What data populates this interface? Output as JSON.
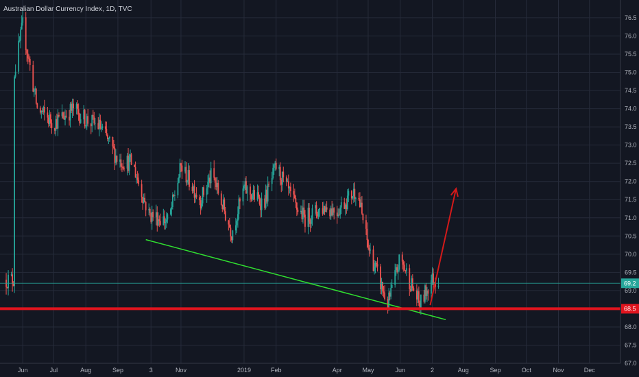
{
  "header": {
    "title": "Australian Dollar Currency Index, 1D, TVC"
  },
  "colors": {
    "background": "#131722",
    "grid": "#262b3a",
    "up": "#26a69a",
    "down": "#ef5350",
    "support": "#e0141e",
    "trend": "#30e030",
    "arrow": "#d41a1a",
    "price_line": "#26a69a"
  },
  "chart_data": {
    "type": "candlestick",
    "ylim": [
      67.0,
      76.8
    ],
    "y_ticks": [
      "76.5",
      "76.0",
      "75.5",
      "75.0",
      "74.5",
      "74.0",
      "73.5",
      "73.0",
      "72.5",
      "72.0",
      "71.5",
      "71.0",
      "70.5",
      "70.0",
      "69.5",
      "69.0",
      "68.5",
      "68.0",
      "67.5",
      "67.0"
    ],
    "x_ticks": [
      "Jun",
      "Jul",
      "Aug",
      "Sep",
      "3",
      "Nov",
      "2019",
      "Feb",
      "Apr",
      "May",
      "Jun",
      "2",
      "Aug",
      "Sep",
      "Oct",
      "Nov",
      "Dec"
    ],
    "current_price": {
      "label": "69.2",
      "value": 69.2
    },
    "support_level": {
      "label": "68.5",
      "value": 68.5
    },
    "series": [
      {
        "x": [
          "2018-05-24",
          "2018-06-01",
          "2018-06-15",
          "2018-07-01",
          "2018-07-20",
          "2018-08-01",
          "2018-08-15",
          "2018-09-01",
          "2018-09-15",
          "2018-10-01",
          "2018-10-20",
          "2018-11-01",
          "2018-11-20",
          "2018-12-01",
          "2018-12-20",
          "2019-01-01",
          "2019-01-20",
          "2019-02-01",
          "2019-02-20",
          "2019-03-01",
          "2019-03-20",
          "2019-04-01",
          "2019-04-20",
          "2019-05-01",
          "2019-05-20",
          "2019-06-01",
          "2019-06-20",
          "2019-07-01"
        ],
        "close": [
          75.0,
          76.3,
          74.0,
          73.6,
          74.0,
          73.7,
          73.5,
          72.6,
          72.5,
          71.1,
          70.9,
          72.4,
          71.5,
          72.2,
          70.6,
          71.8,
          71.4,
          72.4,
          71.3,
          71.0,
          71.3,
          71.2,
          71.8,
          70.2,
          68.6,
          69.9,
          68.6,
          69.3
        ]
      }
    ],
    "annotations": [
      {
        "type": "trendline",
        "start": [
          "2018-09-28",
          70.4
        ],
        "end": [
          "2019-07-15",
          68.2
        ]
      },
      {
        "type": "horizontal_line",
        "value": 68.5
      },
      {
        "type": "arrow",
        "start": [
          "2019-06-30",
          68.6
        ],
        "end": [
          "2019-07-25",
          71.8
        ]
      }
    ]
  }
}
